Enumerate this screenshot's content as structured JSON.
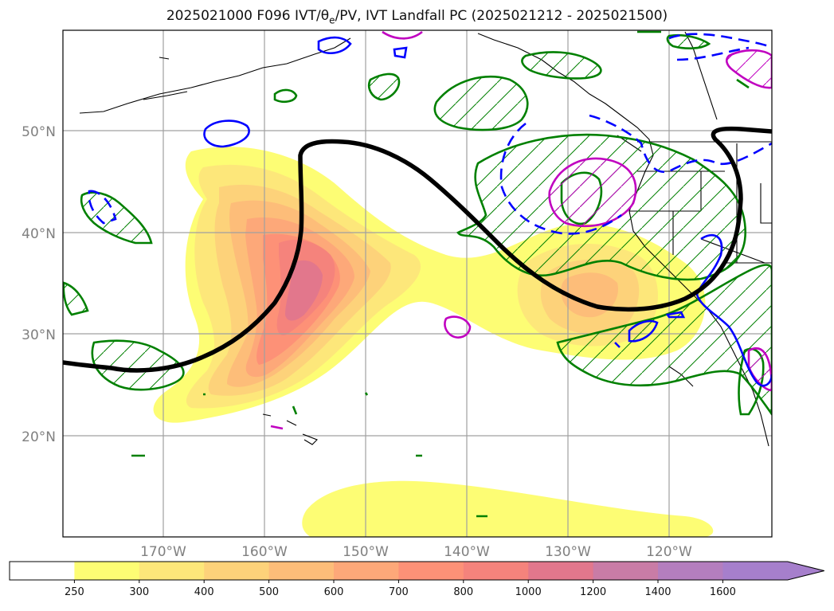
{
  "title": {
    "prefix": "2025021000 F096 IVT/",
    "theta": "θ",
    "theta_sub": "e",
    "suffix": "/PV, IVT Landfall PC (2025021212 - 2025021500)"
  },
  "map": {
    "lat_labels": [
      "50°N",
      "40°N",
      "30°N",
      "20°N"
    ],
    "lon_labels": [
      "170°W",
      "160°W",
      "150°W",
      "140°W",
      "130°W",
      "120°W"
    ],
    "grid": true
  },
  "colorbar": {
    "ticks": [
      "250",
      "300",
      "400",
      "500",
      "600",
      "700",
      "800",
      "1000",
      "1200",
      "1400",
      "1600"
    ],
    "colors": [
      "#ffffff",
      "#fdfd74",
      "#fde77a",
      "#fdd27a",
      "#fdbd79",
      "#fda879",
      "#fd9177",
      "#f5837c",
      "#e2778c",
      "#c97ca6",
      "#b47ebe",
      "#a67fcc"
    ],
    "extend": "max"
  },
  "colors": {
    "pc_line": "#000000",
    "pv_green": "#008000",
    "theta_blue": "#0000ff",
    "magenta": "#c000c0",
    "grid": "#a0a0a0"
  }
}
